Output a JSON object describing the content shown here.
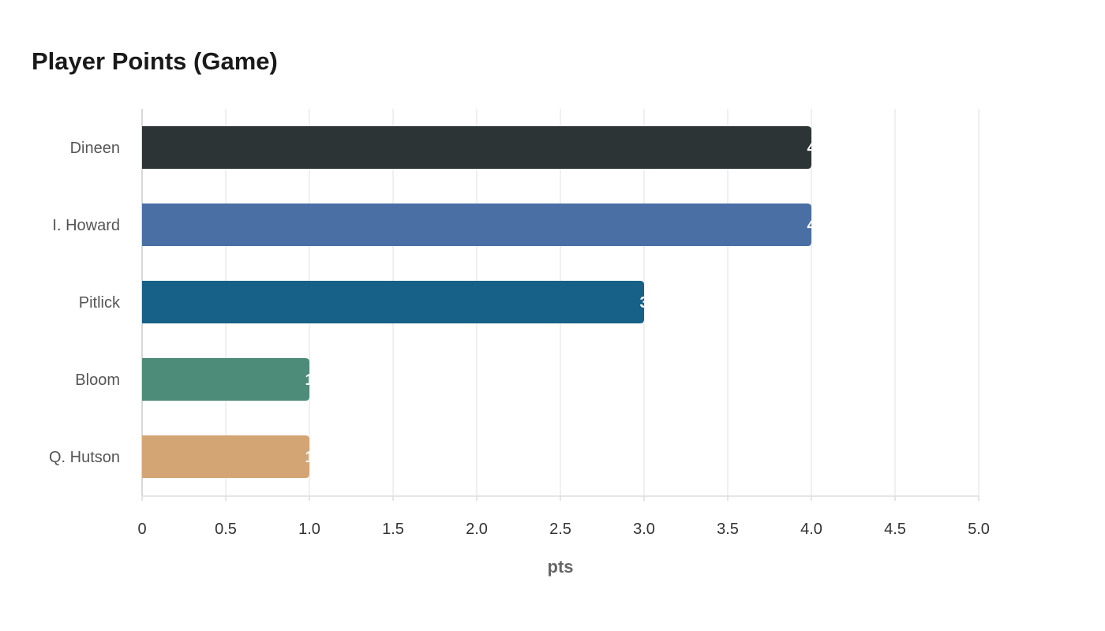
{
  "chart_data": {
    "type": "bar",
    "orientation": "horizontal",
    "title": "Player Points (Game)",
    "xlabel": "pts",
    "ylabel": "",
    "categories": [
      "Dineen",
      "I. Howard",
      "Pitlick",
      "Bloom",
      "Q. Hutson"
    ],
    "values": [
      4,
      4,
      3,
      1,
      1
    ],
    "colors": [
      "#2d3436",
      "#4a6fa5",
      "#176087",
      "#4e8c7a",
      "#d4a574"
    ],
    "xlim": [
      0,
      5
    ],
    "xticks": [
      "0",
      "0.5",
      "1.0",
      "1.5",
      "2.0",
      "2.5",
      "3.0",
      "3.5",
      "4.0",
      "4.5",
      "5.0"
    ],
    "grid": true,
    "legend": "none"
  }
}
